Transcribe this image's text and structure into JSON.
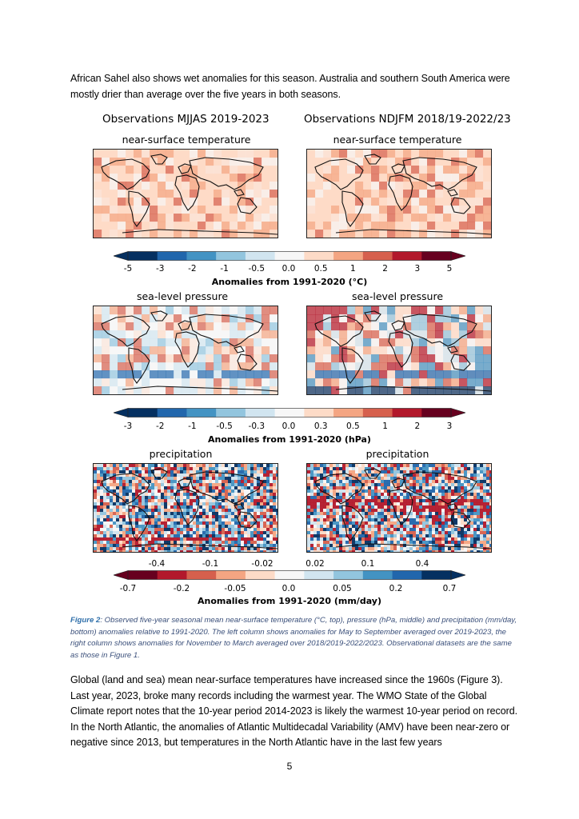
{
  "intro_text": "African Sahel also shows wet anomalies for this season. Australia and southern South America were mostly drier than average over the five years in both seasons.",
  "figure": {
    "left_column_title": "Observations MJJAS 2019-2023",
    "right_column_title": "Observations NDJFM 2018/19-2022/23",
    "temperature": {
      "panel_title": "near-surface temperature",
      "colorbar_ticks": [
        "-5",
        "-3",
        "-2",
        "-1",
        "-0.5",
        "0.0",
        "0.5",
        "1",
        "2",
        "3",
        "5"
      ],
      "colorbar_label": "Anomalies from 1991-2020 (°C)",
      "colorbar_colors": [
        "#053061",
        "#2166ac",
        "#4393c3",
        "#92c5de",
        "#d1e5f0",
        "#f7f7f7",
        "#fddbc7",
        "#f4a582",
        "#d6604d",
        "#b2182b",
        "#67001f"
      ]
    },
    "pressure": {
      "panel_title": "sea-level pressure",
      "colorbar_ticks": [
        "-3",
        "-2",
        "-1",
        "-0.5",
        "-0.3",
        "0.0",
        "0.3",
        "0.5",
        "1",
        "2",
        "3"
      ],
      "colorbar_label": "Anomalies from 1991-2020 (hPa)",
      "colorbar_colors": [
        "#053061",
        "#2166ac",
        "#4393c3",
        "#92c5de",
        "#d1e5f0",
        "#f7f7f7",
        "#fddbc7",
        "#f4a582",
        "#d6604d",
        "#b2182b",
        "#67001f"
      ]
    },
    "precipitation": {
      "panel_title": "precipitation",
      "colorbar_ticks_top": [
        "-0.4",
        "-0.1",
        "-0.02",
        "0.02",
        "0.1",
        "0.4"
      ],
      "colorbar_ticks_bottom": [
        "-0.7",
        "-0.2",
        "-0.05",
        "0.0",
        "0.05",
        "0.2",
        "0.7"
      ],
      "colorbar_label": "Anomalies from 1991-2020 (mm/day)",
      "colorbar_colors": [
        "#67001f",
        "#b2182b",
        "#d6604d",
        "#f4a582",
        "#fddbc7",
        "#f7f7f7",
        "#d1e5f0",
        "#92c5de",
        "#4393c3",
        "#2166ac",
        "#053061"
      ]
    }
  },
  "caption": {
    "label": "Figure 2",
    "text": ": Observed five-year seasonal mean near-surface temperature (°C, top), pressure (hPa, middle) and precipitation (mm/day, bottom) anomalies relative to 1991-2020. The left column shows anomalies for May to September averaged over 2019-2023, the right column shows anomalies for November to March averaged over 2018/2019-2022/2023. Observational datasets are the same as those in Figure 1."
  },
  "body_text": "Global (land and sea) mean near-surface temperatures have increased since the 1960s (Figure 3). Last year, 2023, broke many records including the warmest year. The WMO State of the Global Climate report notes that the 10-year period 2014-2023 is likely the warmest 10-year period on record. In the North Atlantic, the anomalies of Atlantic Multidecadal Variability (AMV) have been near-zero or negative since 2013, but temperatures in the North Atlantic have in the last few years",
  "page_number": "5"
}
